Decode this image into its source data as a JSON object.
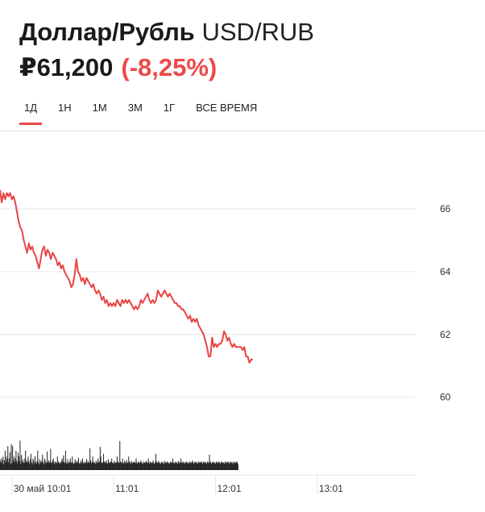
{
  "header": {
    "title": "Доллар/Рубль",
    "ticker": "USD/RUB",
    "price": "₽61,200",
    "change": "(-8,25%)"
  },
  "tabs": [
    {
      "label": "1Д",
      "active": true
    },
    {
      "label": "1Н",
      "active": false
    },
    {
      "label": "1М",
      "active": false
    },
    {
      "label": "3М",
      "active": false
    },
    {
      "label": "1Г",
      "active": false
    },
    {
      "label": "ВСЕ ВРЕМЯ",
      "active": false
    }
  ],
  "colors": {
    "accent": "#ec4a4a",
    "line": "#e84545",
    "volume": "#222222",
    "grid": "#e6e6e6"
  },
  "chart_data": {
    "type": "line",
    "title": "",
    "xlabel": "",
    "ylabel": "",
    "ylim": [
      59.3,
      67.0
    ],
    "y_ticks": [
      66,
      64,
      62,
      60
    ],
    "y_tick_labels": [
      "66",
      "64",
      "62",
      "60"
    ],
    "x_tick_labels": [
      "30 май 10:01",
      "11:01",
      "12:01",
      "13:01"
    ],
    "x_ticks_minutes": [
      0,
      60,
      120,
      180
    ],
    "xlim_minutes": [
      -7,
      238
    ],
    "grid": true,
    "legend": "none",
    "series": [
      {
        "points": [
          [
            -7,
            66.6
          ],
          [
            -6,
            66.2
          ],
          [
            -5,
            66.5
          ],
          [
            -4,
            66.3
          ],
          [
            -3,
            66.5
          ],
          [
            -2,
            66.4
          ],
          [
            -1,
            66.5
          ],
          [
            0,
            66.3
          ],
          [
            1,
            66.4
          ],
          [
            2,
            66.2
          ],
          [
            3,
            65.9
          ],
          [
            4,
            65.6
          ],
          [
            5,
            65.4
          ],
          [
            6,
            65.3
          ],
          [
            7,
            65.0
          ],
          [
            8,
            64.8
          ],
          [
            9,
            64.6
          ],
          [
            10,
            64.9
          ],
          [
            11,
            64.7
          ],
          [
            12,
            64.8
          ],
          [
            13,
            64.6
          ],
          [
            14,
            64.5
          ],
          [
            15,
            64.3
          ],
          [
            16,
            64.1
          ],
          [
            17,
            64.4
          ],
          [
            18,
            64.7
          ],
          [
            19,
            64.8
          ],
          [
            20,
            64.5
          ],
          [
            21,
            64.7
          ],
          [
            22,
            64.6
          ],
          [
            23,
            64.4
          ],
          [
            24,
            64.6
          ],
          [
            25,
            64.5
          ],
          [
            26,
            64.4
          ],
          [
            27,
            64.2
          ],
          [
            28,
            64.3
          ],
          [
            29,
            64.1
          ],
          [
            30,
            64.2
          ],
          [
            31,
            64.0
          ],
          [
            32,
            63.9
          ],
          [
            33,
            63.8
          ],
          [
            34,
            63.7
          ],
          [
            35,
            63.5
          ],
          [
            36,
            63.6
          ],
          [
            37,
            63.9
          ],
          [
            38,
            64.4
          ],
          [
            39,
            64.0
          ],
          [
            40,
            63.9
          ],
          [
            41,
            63.7
          ],
          [
            42,
            63.8
          ],
          [
            43,
            63.6
          ],
          [
            44,
            63.8
          ],
          [
            45,
            63.7
          ],
          [
            46,
            63.6
          ],
          [
            47,
            63.5
          ],
          [
            48,
            63.6
          ],
          [
            49,
            63.4
          ],
          [
            50,
            63.3
          ],
          [
            51,
            63.4
          ],
          [
            52,
            63.3
          ],
          [
            53,
            63.1
          ],
          [
            54,
            63.2
          ],
          [
            55,
            63.0
          ],
          [
            56,
            63.1
          ],
          [
            57,
            62.9
          ],
          [
            58,
            63.0
          ],
          [
            59,
            62.9
          ],
          [
            60,
            63.0
          ],
          [
            61,
            62.9
          ],
          [
            62,
            63.1
          ],
          [
            63,
            63.0
          ],
          [
            64,
            62.9
          ],
          [
            65,
            63.1
          ],
          [
            66,
            63.0
          ],
          [
            67,
            63.1
          ],
          [
            68,
            63.0
          ],
          [
            69,
            63.1
          ],
          [
            70,
            63.0
          ],
          [
            71,
            62.9
          ],
          [
            72,
            62.8
          ],
          [
            73,
            62.9
          ],
          [
            74,
            62.8
          ],
          [
            75,
            62.9
          ],
          [
            76,
            63.1
          ],
          [
            77,
            63.0
          ],
          [
            78,
            63.1
          ],
          [
            79,
            63.2
          ],
          [
            80,
            63.3
          ],
          [
            81,
            63.1
          ],
          [
            82,
            63.0
          ],
          [
            83,
            63.1
          ],
          [
            84,
            63.0
          ],
          [
            85,
            63.1
          ],
          [
            86,
            63.4
          ],
          [
            87,
            63.3
          ],
          [
            88,
            63.2
          ],
          [
            89,
            63.3
          ],
          [
            90,
            63.4
          ],
          [
            91,
            63.3
          ],
          [
            92,
            63.2
          ],
          [
            93,
            63.3
          ],
          [
            94,
            63.2
          ],
          [
            95,
            63.1
          ],
          [
            96,
            63.0
          ],
          [
            97,
            63.0
          ],
          [
            98,
            62.9
          ],
          [
            99,
            62.9
          ],
          [
            100,
            62.8
          ],
          [
            101,
            62.8
          ],
          [
            102,
            62.7
          ],
          [
            103,
            62.6
          ],
          [
            104,
            62.5
          ],
          [
            105,
            62.6
          ],
          [
            106,
            62.4
          ],
          [
            107,
            62.5
          ],
          [
            108,
            62.4
          ],
          [
            109,
            62.5
          ],
          [
            110,
            62.3
          ],
          [
            111,
            62.2
          ],
          [
            112,
            62.1
          ],
          [
            113,
            62.0
          ],
          [
            114,
            61.8
          ],
          [
            115,
            61.6
          ],
          [
            116,
            61.3
          ],
          [
            117,
            61.3
          ],
          [
            118,
            61.9
          ],
          [
            119,
            61.6
          ],
          [
            120,
            61.7
          ],
          [
            121,
            61.6
          ],
          [
            122,
            61.7
          ],
          [
            123,
            61.7
          ],
          [
            124,
            61.8
          ],
          [
            125,
            62.1
          ],
          [
            126,
            62.0
          ],
          [
            127,
            61.8
          ],
          [
            128,
            61.9
          ],
          [
            129,
            61.7
          ],
          [
            130,
            61.6
          ],
          [
            131,
            61.7
          ],
          [
            132,
            61.6
          ],
          [
            133,
            61.6
          ],
          [
            134,
            61.6
          ],
          [
            135,
            61.6
          ],
          [
            136,
            61.5
          ],
          [
            137,
            61.6
          ],
          [
            138,
            61.3
          ],
          [
            139,
            61.3
          ],
          [
            140,
            61.1
          ],
          [
            141,
            61.2
          ],
          [
            142,
            61.2
          ]
        ]
      }
    ],
    "volume": {
      "x_start_minutes": -7,
      "x_step_minutes": 0.4,
      "relative_heights": [
        0.22,
        0.3,
        0.18,
        0.27,
        0.35,
        0.15,
        0.25,
        0.5,
        0.2,
        0.35,
        0.28,
        0.62,
        0.2,
        0.3,
        0.46,
        0.15,
        0.67,
        0.18,
        0.62,
        0.25,
        0.35,
        0.2,
        0.3,
        0.5,
        0.24,
        0.18,
        0.45,
        0.36,
        0.24,
        0.76,
        0.16,
        0.39,
        0.22,
        0.28,
        0.2,
        0.18,
        0.3,
        0.5,
        0.2,
        0.26,
        0.2,
        0.35,
        0.22,
        0.16,
        0.28,
        0.42,
        0.2,
        0.15,
        0.3,
        0.25,
        0.18,
        0.36,
        0.2,
        0.16,
        0.24,
        0.5,
        0.2,
        0.15,
        0.28,
        0.22,
        0.18,
        0.24,
        0.4,
        0.2,
        0.15,
        0.3,
        0.25,
        0.18,
        0.2,
        0.48,
        0.2,
        0.25,
        0.18,
        0.22,
        0.55,
        0.2,
        0.18,
        0.25,
        0.3,
        0.2,
        0.15,
        0.22,
        0.2,
        0.18,
        0.35,
        0.22,
        0.2,
        0.16,
        0.2,
        0.18,
        0.24,
        0.3,
        0.2,
        0.38,
        0.22,
        0.18,
        0.5,
        0.2,
        0.16,
        0.28,
        0.2,
        0.18,
        0.22,
        0.3,
        0.2,
        0.18,
        0.35,
        0.2,
        0.16,
        0.18,
        0.28,
        0.22,
        0.18,
        0.24,
        0.2,
        0.32,
        0.18,
        0.16,
        0.2,
        0.25,
        0.18,
        0.3,
        0.2,
        0.16,
        0.22,
        0.18,
        0.2,
        0.28,
        0.18,
        0.24,
        0.2,
        0.18,
        0.56,
        0.25,
        0.18,
        0.2,
        0.35,
        0.22,
        0.18,
        0.2,
        0.16,
        0.24,
        0.2,
        0.18,
        0.3,
        0.22,
        0.2,
        0.6,
        0.35,
        0.2,
        0.18,
        0.2,
        0.42,
        0.22,
        0.2,
        0.18,
        0.25,
        0.2,
        0.16,
        0.28,
        0.2,
        0.18,
        0.22,
        0.2,
        0.3,
        0.18,
        0.2,
        0.16,
        0.24,
        0.2,
        0.18,
        0.2,
        0.35,
        0.22,
        0.2,
        0.18,
        0.75,
        0.22,
        0.2,
        0.18,
        0.3,
        0.2,
        0.16,
        0.24,
        0.2,
        0.18,
        0.26,
        0.2,
        0.18,
        0.35,
        0.22,
        0.2,
        0.16,
        0.24,
        0.2,
        0.18,
        0.2,
        0.22,
        0.2,
        0.18,
        0.3,
        0.2,
        0.16,
        0.22,
        0.2,
        0.18,
        0.2,
        0.25,
        0.2,
        0.18,
        0.16,
        0.22,
        0.2,
        0.18,
        0.2,
        0.24,
        0.2,
        0.18,
        0.3,
        0.2,
        0.16,
        0.22,
        0.2,
        0.18,
        0.2,
        0.25,
        0.18,
        0.16,
        0.2,
        0.42,
        0.22,
        0.2,
        0.18,
        0.24,
        0.2,
        0.18,
        0.16,
        0.2,
        0.22,
        0.18,
        0.2,
        0.16,
        0.24,
        0.2,
        0.18,
        0.2,
        0.22,
        0.2,
        0.18,
        0.16,
        0.2,
        0.22,
        0.2,
        0.18,
        0.3,
        0.2,
        0.16,
        0.2,
        0.22,
        0.18,
        0.2,
        0.16,
        0.24,
        0.2,
        0.18,
        0.2,
        0.3,
        0.2,
        0.18,
        0.22,
        0.2,
        0.16,
        0.2,
        0.18,
        0.22,
        0.2,
        0.18,
        0.2,
        0.16,
        0.22,
        0.2,
        0.18,
        0.2,
        0.25,
        0.2,
        0.16,
        0.2,
        0.22,
        0.2,
        0.18,
        0.2,
        0.16,
        0.22,
        0.2,
        0.18,
        0.2,
        0.22,
        0.2,
        0.16,
        0.2,
        0.22,
        0.2,
        0.18,
        0.2,
        0.16,
        0.22,
        0.2,
        0.18,
        0.4,
        0.22,
        0.2,
        0.16,
        0.2,
        0.22,
        0.2,
        0.18,
        0.2,
        0.16,
        0.22,
        0.2,
        0.18,
        0.2,
        0.22,
        0.2,
        0.16,
        0.2,
        0.22,
        0.2,
        0.18,
        0.2,
        0.16,
        0.22,
        0.2,
        0.18,
        0.2,
        0.22,
        0.2,
        0.16,
        0.2,
        0.22,
        0.2,
        0.18,
        0.2,
        0.16,
        0.22,
        0.2,
        0.18,
        0.2,
        0.22,
        0.2,
        0.16
      ]
    }
  }
}
